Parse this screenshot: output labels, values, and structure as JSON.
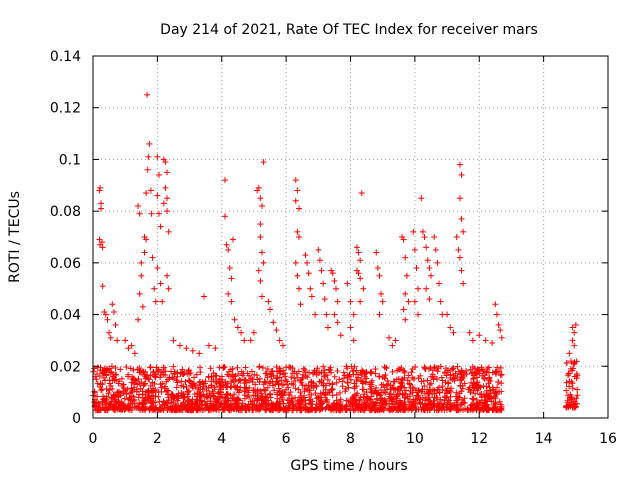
{
  "chart_data": {
    "type": "scatter",
    "title": "Day 214 of 2021, Rate Of TEC Index for receiver mars",
    "xlabel": "GPS time / hours",
    "ylabel": "ROTI / TECUs",
    "xlim": [
      0,
      16
    ],
    "ylim": [
      0,
      0.14
    ],
    "xticks": [
      0,
      2,
      4,
      6,
      8,
      10,
      12,
      14,
      16
    ],
    "yticks": [
      0,
      0.02,
      0.04,
      0.06,
      0.08,
      0.1,
      0.12,
      0.14
    ],
    "xtick_labels": [
      "0",
      "2",
      "4",
      "6",
      "8",
      "10",
      "12",
      "14",
      "16"
    ],
    "ytick_labels": [
      "0",
      "0.02",
      "0.04",
      "0.06",
      "0.08",
      "0.1",
      "0.12",
      "0.14"
    ],
    "grid": true,
    "marker": "+",
    "color": "#ff0000",
    "series": [
      {
        "name": "ROTI",
        "density_bands": [
          {
            "x_start": 0.0,
            "x_end": 12.7,
            "y_low": 0.003,
            "y_high": 0.02
          },
          {
            "x_start": 14.7,
            "x_end": 15.05,
            "y_low": 0.004,
            "y_high": 0.022
          }
        ],
        "points": [
          [
            0.2,
            0.088
          ],
          [
            0.22,
            0.089
          ],
          [
            0.25,
            0.083
          ],
          [
            0.25,
            0.081
          ],
          [
            0.2,
            0.069
          ],
          [
            0.22,
            0.067
          ],
          [
            0.28,
            0.068
          ],
          [
            0.3,
            0.066
          ],
          [
            0.3,
            0.051
          ],
          [
            0.35,
            0.041
          ],
          [
            0.4,
            0.04
          ],
          [
            0.45,
            0.038
          ],
          [
            0.5,
            0.033
          ],
          [
            0.55,
            0.031
          ],
          [
            0.6,
            0.044
          ],
          [
            0.65,
            0.041
          ],
          [
            0.7,
            0.036
          ],
          [
            0.75,
            0.03
          ],
          [
            1.0,
            0.03
          ],
          [
            1.1,
            0.027
          ],
          [
            1.2,
            0.028
          ],
          [
            1.3,
            0.025
          ],
          [
            1.4,
            0.082
          ],
          [
            1.45,
            0.079
          ],
          [
            1.5,
            0.06
          ],
          [
            1.5,
            0.055
          ],
          [
            1.45,
            0.048
          ],
          [
            1.55,
            0.043
          ],
          [
            1.4,
            0.038
          ],
          [
            1.6,
            0.07
          ],
          [
            1.65,
            0.069
          ],
          [
            1.6,
            0.064
          ],
          [
            1.65,
            0.087
          ],
          [
            1.7,
            0.096
          ],
          [
            1.72,
            0.101
          ],
          [
            1.75,
            0.106
          ],
          [
            1.68,
            0.125
          ],
          [
            1.8,
            0.088
          ],
          [
            1.82,
            0.079
          ],
          [
            1.85,
            0.062
          ],
          [
            1.9,
            0.05
          ],
          [
            1.95,
            0.045
          ],
          [
            2.0,
            0.101
          ],
          [
            2.05,
            0.094
          ],
          [
            2.0,
            0.086
          ],
          [
            2.05,
            0.079
          ],
          [
            2.1,
            0.074
          ],
          [
            2.0,
            0.058
          ],
          [
            2.1,
            0.052
          ],
          [
            2.15,
            0.045
          ],
          [
            2.2,
            0.1
          ],
          [
            2.25,
            0.099
          ],
          [
            2.3,
            0.095
          ],
          [
            2.25,
            0.089
          ],
          [
            2.3,
            0.085
          ],
          [
            2.2,
            0.083
          ],
          [
            2.3,
            0.08
          ],
          [
            2.35,
            0.072
          ],
          [
            2.3,
            0.055
          ],
          [
            2.35,
            0.05
          ],
          [
            2.5,
            0.03
          ],
          [
            2.7,
            0.028
          ],
          [
            2.9,
            0.027
          ],
          [
            3.1,
            0.026
          ],
          [
            3.3,
            0.025
          ],
          [
            3.45,
            0.047
          ],
          [
            3.6,
            0.028
          ],
          [
            3.8,
            0.027
          ],
          [
            4.1,
            0.092
          ],
          [
            4.1,
            0.078
          ],
          [
            4.15,
            0.067
          ],
          [
            4.2,
            0.065
          ],
          [
            4.25,
            0.058
          ],
          [
            4.3,
            0.054
          ],
          [
            4.2,
            0.048
          ],
          [
            4.35,
            0.069
          ],
          [
            4.3,
            0.045
          ],
          [
            4.4,
            0.038
          ],
          [
            4.5,
            0.035
          ],
          [
            4.6,
            0.033
          ],
          [
            4.7,
            0.03
          ],
          [
            4.9,
            0.03
          ],
          [
            5.0,
            0.033
          ],
          [
            5.1,
            0.088
          ],
          [
            5.15,
            0.089
          ],
          [
            5.2,
            0.085
          ],
          [
            5.25,
            0.082
          ],
          [
            5.3,
            0.099
          ],
          [
            5.2,
            0.075
          ],
          [
            5.2,
            0.07
          ],
          [
            5.25,
            0.064
          ],
          [
            5.3,
            0.06
          ],
          [
            5.15,
            0.057
          ],
          [
            5.2,
            0.053
          ],
          [
            5.25,
            0.047
          ],
          [
            5.45,
            0.045
          ],
          [
            5.5,
            0.042
          ],
          [
            5.6,
            0.037
          ],
          [
            5.7,
            0.034
          ],
          [
            5.8,
            0.03
          ],
          [
            5.9,
            0.028
          ],
          [
            6.3,
            0.092
          ],
          [
            6.35,
            0.088
          ],
          [
            6.3,
            0.084
          ],
          [
            6.4,
            0.081
          ],
          [
            6.35,
            0.072
          ],
          [
            6.4,
            0.07
          ],
          [
            6.3,
            0.06
          ],
          [
            6.35,
            0.055
          ],
          [
            6.4,
            0.05
          ],
          [
            6.45,
            0.044
          ],
          [
            6.6,
            0.063
          ],
          [
            6.65,
            0.06
          ],
          [
            6.7,
            0.056
          ],
          [
            6.75,
            0.05
          ],
          [
            6.8,
            0.047
          ],
          [
            6.9,
            0.04
          ],
          [
            7.0,
            0.065
          ],
          [
            7.05,
            0.061
          ],
          [
            7.1,
            0.057
          ],
          [
            7.15,
            0.052
          ],
          [
            7.2,
            0.046
          ],
          [
            7.25,
            0.04
          ],
          [
            7.3,
            0.035
          ],
          [
            7.4,
            0.057
          ],
          [
            7.45,
            0.056
          ],
          [
            7.5,
            0.053
          ],
          [
            7.55,
            0.05
          ],
          [
            7.6,
            0.045
          ],
          [
            7.5,
            0.04
          ],
          [
            7.6,
            0.037
          ],
          [
            7.7,
            0.032
          ],
          [
            7.9,
            0.052
          ],
          [
            8.0,
            0.045
          ],
          [
            8.1,
            0.04
          ],
          [
            8.0,
            0.035
          ],
          [
            8.1,
            0.03
          ],
          [
            8.2,
            0.066
          ],
          [
            8.25,
            0.064
          ],
          [
            8.3,
            0.061
          ],
          [
            8.2,
            0.057
          ],
          [
            8.25,
            0.056
          ],
          [
            8.3,
            0.054
          ],
          [
            8.35,
            0.087
          ],
          [
            8.4,
            0.05
          ],
          [
            8.3,
            0.045
          ],
          [
            8.8,
            0.064
          ],
          [
            8.85,
            0.058
          ],
          [
            8.9,
            0.055
          ],
          [
            8.95,
            0.048
          ],
          [
            9.0,
            0.045
          ],
          [
            8.9,
            0.04
          ],
          [
            9.2,
            0.031
          ],
          [
            9.3,
            0.028
          ],
          [
            9.4,
            0.03
          ],
          [
            9.6,
            0.07
          ],
          [
            9.65,
            0.069
          ],
          [
            9.7,
            0.062
          ],
          [
            9.75,
            0.055
          ],
          [
            9.7,
            0.048
          ],
          [
            9.8,
            0.045
          ],
          [
            9.65,
            0.042
          ],
          [
            9.7,
            0.038
          ],
          [
            9.95,
            0.072
          ],
          [
            10.0,
            0.065
          ],
          [
            10.05,
            0.058
          ],
          [
            10.1,
            0.05
          ],
          [
            10.0,
            0.045
          ],
          [
            10.1,
            0.04
          ],
          [
            10.2,
            0.085
          ],
          [
            10.25,
            0.072
          ],
          [
            10.3,
            0.07
          ],
          [
            10.35,
            0.066
          ],
          [
            10.4,
            0.061
          ],
          [
            10.45,
            0.058
          ],
          [
            10.5,
            0.055
          ],
          [
            10.35,
            0.05
          ],
          [
            10.45,
            0.046
          ],
          [
            10.6,
            0.07
          ],
          [
            10.65,
            0.065
          ],
          [
            10.7,
            0.06
          ],
          [
            10.75,
            0.052
          ],
          [
            10.8,
            0.045
          ],
          [
            10.85,
            0.04
          ],
          [
            11.0,
            0.04
          ],
          [
            11.1,
            0.035
          ],
          [
            11.2,
            0.033
          ],
          [
            11.3,
            0.07
          ],
          [
            11.35,
            0.065
          ],
          [
            11.4,
            0.098
          ],
          [
            11.45,
            0.094
          ],
          [
            11.4,
            0.085
          ],
          [
            11.45,
            0.077
          ],
          [
            11.5,
            0.072
          ],
          [
            11.4,
            0.062
          ],
          [
            11.45,
            0.057
          ],
          [
            11.5,
            0.052
          ],
          [
            11.7,
            0.033
          ],
          [
            11.8,
            0.03
          ],
          [
            12.0,
            0.032
          ],
          [
            12.2,
            0.03
          ],
          [
            12.4,
            0.029
          ],
          [
            12.5,
            0.044
          ],
          [
            12.55,
            0.04
          ],
          [
            12.6,
            0.036
          ],
          [
            12.65,
            0.034
          ],
          [
            12.7,
            0.031
          ],
          [
            14.8,
            0.025
          ],
          [
            14.85,
            0.022
          ],
          [
            14.9,
            0.03
          ],
          [
            14.95,
            0.033
          ],
          [
            14.9,
            0.035
          ],
          [
            15.0,
            0.036
          ],
          [
            14.95,
            0.028
          ],
          [
            14.85,
            0.019
          ]
        ]
      }
    ]
  }
}
